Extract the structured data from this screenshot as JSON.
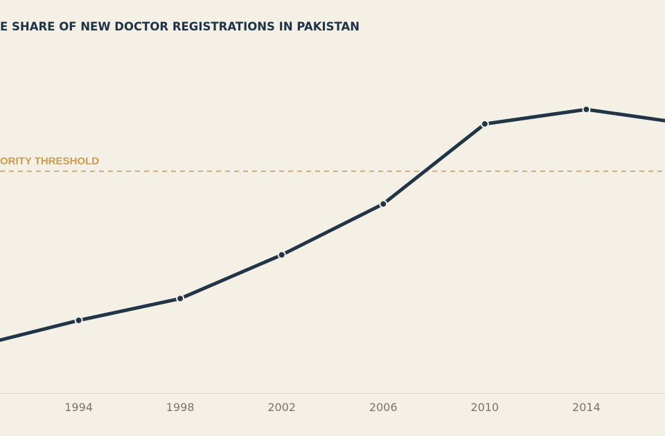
{
  "chart_data": {
    "type": "line",
    "title": "E SHARE OF NEW DOCTOR REGISTRATIONS IN PAKISTAN",
    "xlabel": "",
    "ylabel": "",
    "xlim": [
      1990.9,
      2017.1
    ],
    "ylim": [
      0,
      90
    ],
    "x_ticks": [
      "1994",
      "1998",
      "2002",
      "2006",
      "2010",
      "2014"
    ],
    "series": [
      {
        "x": [
          1990,
          1994,
          1998,
          2002,
          2006,
          2010,
          2014,
          2018
        ],
        "values": [
          13,
          20,
          26,
          38,
          52,
          74,
          78,
          74
        ],
        "color": "#213547",
        "markers": true
      }
    ],
    "reference_line": {
      "y": 61,
      "label": "ORITY THRESHOLD",
      "color": "#c99a4f",
      "style": "dashed"
    },
    "grid": false,
    "legend": "none"
  }
}
